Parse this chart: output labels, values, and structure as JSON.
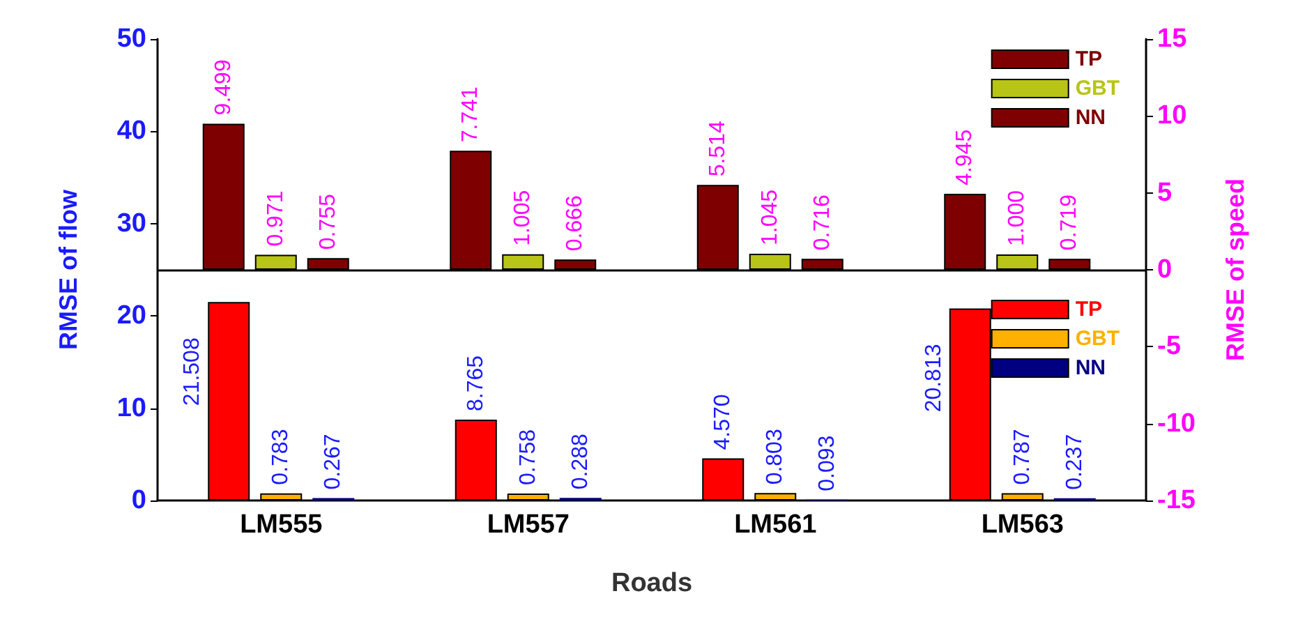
{
  "chart_data": {
    "type": "bar",
    "xlabel": "Roads",
    "ylabel": "RMSE of flow",
    "y2label": "RMSE of speed",
    "categories": [
      "LM555",
      "LM557",
      "LM561",
      "LM563"
    ],
    "ylim": [
      0,
      50
    ],
    "yticks": [
      0,
      10,
      20,
      30,
      40,
      50
    ],
    "y2lim": [
      -15,
      15
    ],
    "y2ticks": [
      -15,
      -10,
      -5,
      0,
      5,
      10,
      15
    ],
    "legend": "top right",
    "grid": false,
    "ref_lines": [
      {
        "axis": "y2",
        "value": 0,
        "color": "#000000"
      }
    ],
    "series": [
      {
        "name": "TP",
        "color": "#7f0000",
        "axis": "y2",
        "values": [
          9.499,
          7.741,
          5.514,
          4.945
        ],
        "value_labels": [
          "9.499",
          "7.741",
          "5.514",
          "4.945"
        ]
      },
      {
        "name": "GBT",
        "color": "#b8c416",
        "axis": "y2",
        "values": [
          0.971,
          1.005,
          1.045,
          1.0
        ],
        "value_labels": [
          "0.971",
          "1.005",
          "1.045",
          "1.000"
        ]
      },
      {
        "name": "NN",
        "color": "#7f0000",
        "axis": "y2",
        "values": [
          0.755,
          0.666,
          0.716,
          0.719
        ],
        "value_labels": [
          "0.755",
          "0.666",
          "0.716",
          "0.719"
        ]
      },
      {
        "name": "TP",
        "color": "#ff0000",
        "axis": "y",
        "values": [
          21.508,
          8.765,
          4.57,
          20.813
        ],
        "value_labels": [
          "21.508",
          "8.765",
          "4.570",
          "20.813"
        ]
      },
      {
        "name": "GBT",
        "color": "#ffb000",
        "axis": "y",
        "values": [
          0.783,
          0.758,
          0.803,
          0.787
        ],
        "value_labels": [
          "0.783",
          "0.758",
          "0.803",
          "0.787"
        ]
      },
      {
        "name": "NN",
        "color": "#000080",
        "axis": "y",
        "values": [
          0.267,
          0.288,
          0.093,
          0.237
        ],
        "value_labels": [
          "0.267",
          "0.288",
          "0.093",
          "0.237"
        ]
      }
    ]
  }
}
